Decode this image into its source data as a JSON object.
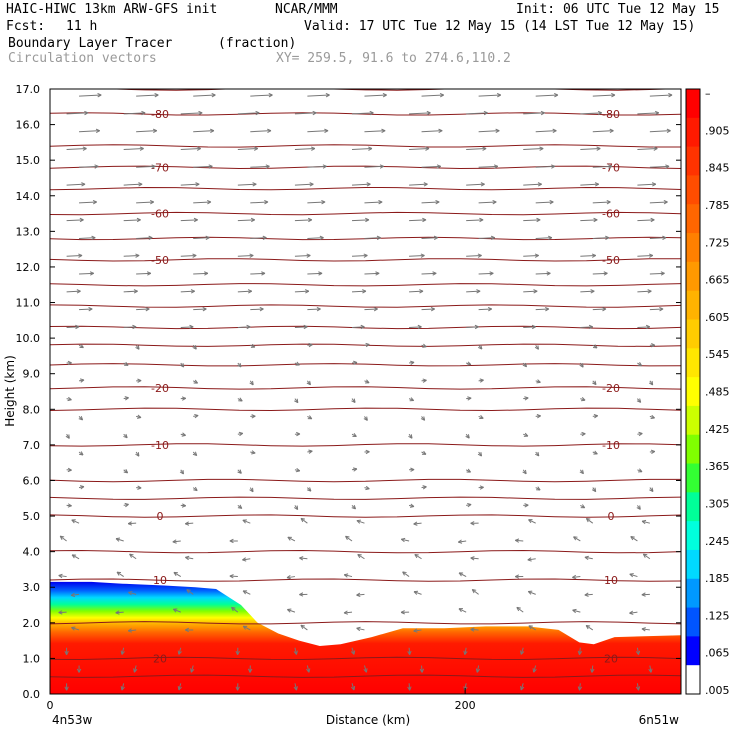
{
  "header": {
    "left1": "HAIC-HIWC 13km ARW-GFS init",
    "org": "NCAR/MMM",
    "init": "Init: 06 UTC Tue 12 May 15",
    "fcst_label": "Fcst:",
    "fcst_value": "11 h",
    "valid": "Valid: 17 UTC Tue 12 May 15 (14 LST Tue 12 May 15)",
    "field_name": "Boundary Layer Tracer",
    "field_unit": "(fraction)",
    "vectors": "Circulation vectors",
    "xy": "XY= 259.5, 91.6 to 274.6,110.2"
  },
  "chart_data": {
    "type": "heatmap",
    "ylabel": "Height (km)",
    "xlabel": "Distance (km)",
    "ylim": [
      0,
      17
    ],
    "xlim": [
      0,
      304
    ],
    "y_ticks": [
      "0.0",
      "1.0",
      "2.0",
      "3.0",
      "4.0",
      "5.0",
      "6.0",
      "7.0",
      "8.0",
      "9.0",
      "10.0",
      "11.0",
      "12.0",
      "13.0",
      "14.0",
      "15.0",
      "16.0",
      "17.0"
    ],
    "x_ticks": [
      {
        "value": 0,
        "label": "0"
      },
      {
        "value": 200,
        "label": "200"
      }
    ],
    "x_end_labels": {
      "left": "4n53w",
      "right": "6n51w"
    },
    "colorbar": {
      "labels": [
        "–",
        ".905",
        ".845",
        ".785",
        ".725",
        ".665",
        ".605",
        ".545",
        ".485",
        ".425",
        ".365",
        ".305",
        ".245",
        ".185",
        ".125",
        ".065",
        ".005"
      ],
      "colors": [
        "#ff0000",
        "#ff1a00",
        "#ff3300",
        "#ff4d00",
        "#ff6600",
        "#ff8000",
        "#ff9900",
        "#ffb300",
        "#ffcc00",
        "#ffe600",
        "#ffff00",
        "#ccff00",
        "#80ff00",
        "#33ff33",
        "#00ff99",
        "#00ffdd",
        "#00d9ff",
        "#0099ff",
        "#0055ff",
        "#0000ff",
        "#ffffff"
      ]
    },
    "boundary_layer_top_km": [
      [
        0,
        3.15
      ],
      [
        20,
        3.15
      ],
      [
        35,
        3.1
      ],
      [
        55,
        3.05
      ],
      [
        70,
        3.0
      ],
      [
        80,
        2.95
      ],
      [
        92,
        2.5
      ],
      [
        100,
        2.0
      ],
      [
        110,
        1.7
      ],
      [
        120,
        1.5
      ],
      [
        130,
        1.35
      ],
      [
        140,
        1.4
      ],
      [
        155,
        1.6
      ],
      [
        170,
        1.85
      ],
      [
        190,
        1.85
      ],
      [
        210,
        1.9
      ],
      [
        230,
        1.9
      ],
      [
        245,
        1.8
      ],
      [
        255,
        1.45
      ],
      [
        262,
        1.4
      ],
      [
        272,
        1.6
      ],
      [
        304,
        1.65
      ]
    ],
    "isotherms": [
      {
        "label": "-80",
        "height_km": 16.3
      },
      {
        "label": "-70",
        "height_km": 14.8
      },
      {
        "label": "-60",
        "height_km": 13.5
      },
      {
        "label": "-50",
        "height_km": 12.2
      },
      {
        "label": "-20",
        "height_km": 8.6
      },
      {
        "label": "-10",
        "height_km": 7.0
      },
      {
        "label": "0",
        "height_km": 5.0
      },
      {
        "label": "10",
        "height_km": 3.2
      },
      {
        "label": "20",
        "height_km": 1.0
      }
    ],
    "extra_isotherm_heights_km": [
      17.0,
      15.4,
      14.2,
      12.8,
      11.5,
      10.9,
      10.3,
      9.8,
      9.25,
      8.0,
      6.0,
      5.5,
      4.0,
      2.0,
      0.5
    ]
  }
}
